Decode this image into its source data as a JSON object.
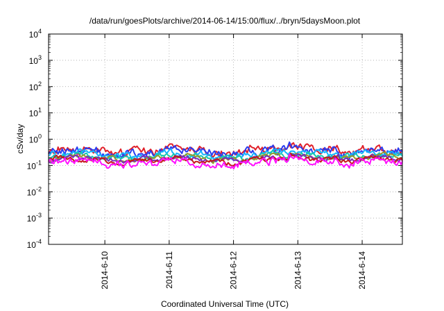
{
  "chart_data": {
    "type": "line",
    "title": "/data/run/goesPlots/archive/2014-06-14/15:00/flux/../bryn/5daysMoon.plot",
    "xlabel": "Coordinated Universal Time (UTC)",
    "ylabel": "cSv/day",
    "x_tick_labels": [
      "2014-6-10",
      "2014-6-11",
      "2014-6-12",
      "2014-6-13",
      "2014-6-14"
    ],
    "x_range": [
      "2014-06-09T03:00",
      "2014-06-14T15:00"
    ],
    "y_scale": "log",
    "ylim": [
      0.0001,
      10000
    ],
    "y_ticks": [
      {
        "base": "10",
        "exp": "4"
      },
      {
        "base": "10",
        "exp": "3"
      },
      {
        "base": "10",
        "exp": "2"
      },
      {
        "base": "10",
        "exp": "1"
      },
      {
        "base": "10",
        "exp": "0"
      },
      {
        "base": "10",
        "exp": "-1"
      },
      {
        "base": "10",
        "exp": "-2"
      },
      {
        "base": "10",
        "exp": "-3"
      },
      {
        "base": "10",
        "exp": "-4"
      }
    ],
    "grid": true,
    "legend": "none",
    "series": [
      {
        "color": "#e0202a",
        "level": 0.37,
        "noise": 0.1
      },
      {
        "color": "#2a3cf0",
        "level": 0.32,
        "noise": 0.1
      },
      {
        "color": "#14b4ff",
        "level": 0.25,
        "noise": 0.07
      },
      {
        "color": "#17c7b0",
        "level": 0.21,
        "noise": 0.06
      },
      {
        "color": "#9a9a2a",
        "level": 0.185,
        "noise": 0.05
      },
      {
        "color": "#7a2ab8",
        "level": 0.17,
        "noise": 0.05
      },
      {
        "color": "#c41a1a",
        "level": 0.155,
        "noise": 0.05
      },
      {
        "color": "#ff10ff",
        "level": 0.13,
        "noise": 0.09
      }
    ]
  }
}
